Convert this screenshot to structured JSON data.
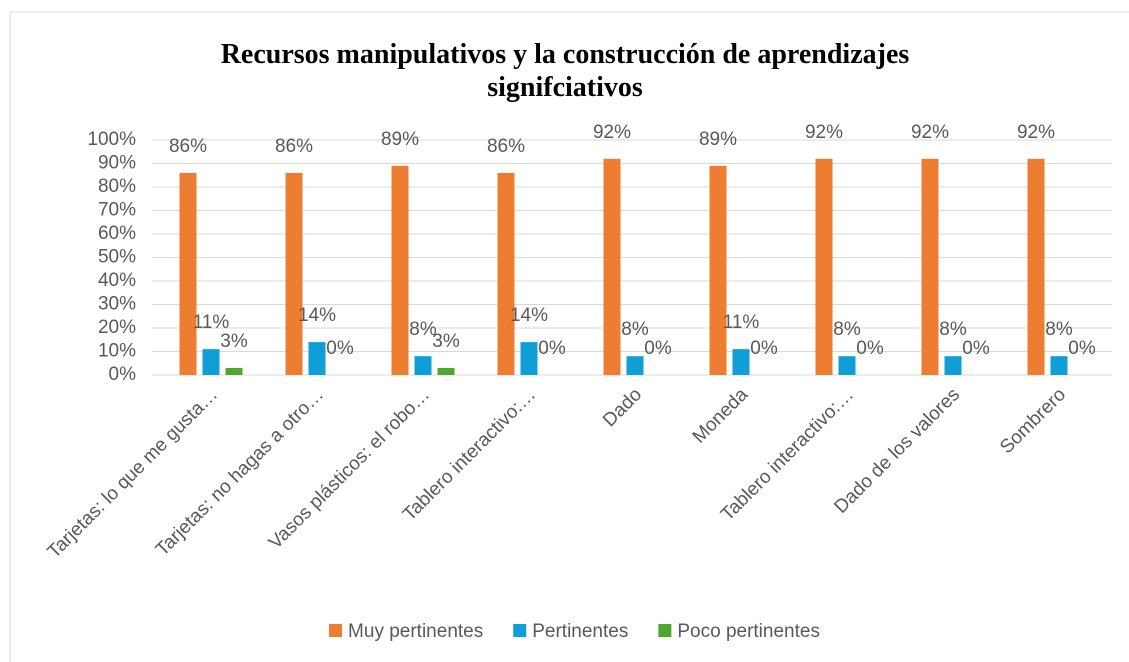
{
  "chart_data": {
    "type": "bar",
    "title": "Recursos manipulativos y la construcción de aprendizajes signifciativos",
    "categories": [
      "Tarjetas: lo que me gusta…",
      "Tarjetas: no hagas a otro…",
      "Vasos plásticos: el robo…",
      "Tablero interactivo:…",
      "Dado",
      "Moneda",
      "Tablero interactivo:…",
      "Dado de los valores",
      "Sombrero"
    ],
    "series": [
      {
        "name": "Muy pertinentes",
        "color": "#ed7d31",
        "values": [
          86,
          86,
          89,
          86,
          92,
          89,
          92,
          92,
          92
        ],
        "value_labels": [
          "86%",
          "86%",
          "89%",
          "86%",
          "92%",
          "89%",
          "92%",
          "92%",
          "92%"
        ]
      },
      {
        "name": "Pertinentes",
        "color": "#0f9ed5",
        "values": [
          11,
          14,
          8,
          14,
          8,
          11,
          8,
          8,
          8
        ],
        "value_labels": [
          "11%",
          "14%",
          "8%",
          "14%",
          "8%",
          "11%",
          "8%",
          "8%",
          "8%"
        ]
      },
      {
        "name": "Poco pertinentes",
        "color": "#4ea72e",
        "values": [
          3,
          0,
          3,
          0,
          0,
          0,
          0,
          0,
          0
        ],
        "value_labels": [
          "3%",
          "0%",
          "3%",
          "0%",
          "0%",
          "0%",
          "0%",
          "0%",
          "0%"
        ]
      }
    ],
    "ylim": [
      0,
      100
    ],
    "yticks": [
      {
        "value": 0,
        "label": "0%"
      },
      {
        "value": 10,
        "label": "10%"
      },
      {
        "value": 20,
        "label": "20%"
      },
      {
        "value": 30,
        "label": "30%"
      },
      {
        "value": 40,
        "label": "40%"
      },
      {
        "value": 50,
        "label": "50%"
      },
      {
        "value": 60,
        "label": "60%"
      },
      {
        "value": 70,
        "label": "70%"
      },
      {
        "value": 80,
        "label": "80%"
      },
      {
        "value": 90,
        "label": "90%"
      },
      {
        "value": 100,
        "label": "100%"
      }
    ],
    "grid": true,
    "legend": "bottom"
  }
}
